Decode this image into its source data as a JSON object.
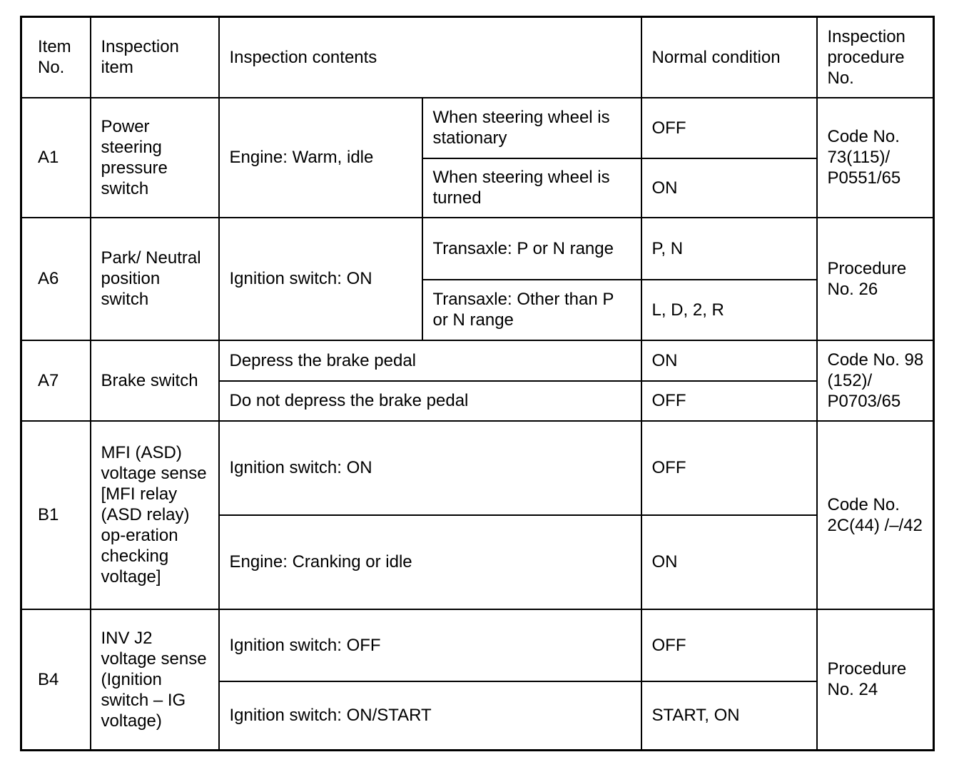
{
  "headers": [
    "Item No.",
    "Inspection item",
    "Inspection contents",
    "Normal condition",
    "Inspection procedure No."
  ],
  "rows": [
    {
      "item_no": "A1",
      "item": "Power steering pressure switch",
      "contents_main": "Engine: Warm, idle",
      "sub": [
        {
          "contents": "When steering wheel is stationary",
          "normal": "OFF"
        },
        {
          "contents": "When steering wheel is turned",
          "normal": "ON"
        }
      ],
      "procedure": "Code No. 73(115)/ P0551/65"
    },
    {
      "item_no": "A6",
      "item": "Park/ Neutral position switch",
      "contents_main": "Ignition switch: ON",
      "sub": [
        {
          "contents": "Transaxle: P or N range",
          "normal": "P, N"
        },
        {
          "contents": "Transaxle: Other than P or N range",
          "normal": "L, D, 2, R"
        }
      ],
      "procedure": "Procedure No. 26"
    },
    {
      "item_no": "A7",
      "item": "Brake switch",
      "sub": [
        {
          "contents": "Depress the brake pedal",
          "normal": "ON"
        },
        {
          "contents": "Do not depress the brake pedal",
          "normal": "OFF"
        }
      ],
      "procedure": "Code No. 98 (152)/ P0703/65"
    },
    {
      "item_no": "B1",
      "item": "MFI (ASD) voltage sense [MFI relay (ASD relay) op-eration checking voltage]",
      "sub": [
        {
          "contents": "Ignition switch: ON",
          "normal": "OFF"
        },
        {
          "contents": "Engine: Cranking or idle",
          "normal": "ON"
        }
      ],
      "procedure": "Code No. 2C(44) /–/42"
    },
    {
      "item_no": "B4",
      "item": "INV J2 voltage sense (Ignition switch – IG voltage)",
      "sub": [
        {
          "contents": "Ignition switch: OFF",
          "normal": "OFF"
        },
        {
          "contents": "Ignition switch: ON/START",
          "normal": "START, ON"
        }
      ],
      "procedure": "Procedure No. 24"
    }
  ]
}
